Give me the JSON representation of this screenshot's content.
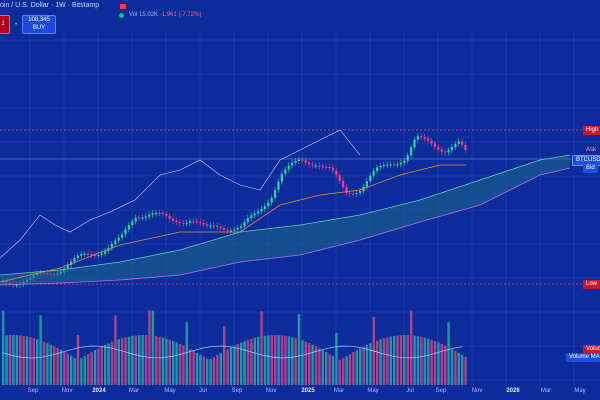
{
  "header": {
    "title": "oin / U.S. Dollar · 1W · Bitstamp",
    "vol_label": "Vol",
    "vol_value": "15.02K",
    "vol_change": "-1,961 (-7.72%)",
    "sell_value": "1",
    "buy_value": "108,345",
    "buy_label": "BUY",
    "flag_icon": "flag-icon",
    "eye_icon": "visibility-icon"
  },
  "price_tags": {
    "high": "High",
    "ask": "Ask",
    "symbol": "BTCUSD",
    "bid": "Bid",
    "low": "Low",
    "volume": "Volume",
    "volume_ma": "Volume MA"
  },
  "colors": {
    "background": "#0d2c9c",
    "up": "#26a69a",
    "down": "#ef5350",
    "accent": "#1d4fe0"
  },
  "x_axis": [
    {
      "label": "Sep",
      "year": false
    },
    {
      "label": "Nov",
      "year": false
    },
    {
      "label": "2024",
      "year": true
    },
    {
      "label": "Mar",
      "year": false
    },
    {
      "label": "May",
      "year": false
    },
    {
      "label": "Jul",
      "year": false
    },
    {
      "label": "Sep",
      "year": false
    },
    {
      "label": "Nov",
      "year": false
    },
    {
      "label": "2025",
      "year": true
    },
    {
      "label": "Mar",
      "year": false
    },
    {
      "label": "May",
      "year": false
    },
    {
      "label": "Jul",
      "year": false
    },
    {
      "label": "Sep",
      "year": false
    },
    {
      "label": "Nov",
      "year": false
    },
    {
      "label": "2026",
      "year": true
    },
    {
      "label": "Mar",
      "year": false
    },
    {
      "label": "May",
      "year": false
    }
  ]
}
